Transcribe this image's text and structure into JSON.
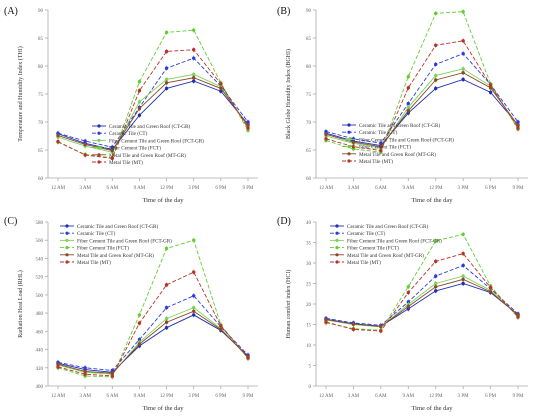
{
  "styles": {
    "series": [
      {
        "color": "#1f2fb0",
        "dash": "",
        "marker": "circle"
      },
      {
        "color": "#2b3be0",
        "dash": "4,2",
        "marker": "circle"
      },
      {
        "color": "#7dd35a",
        "dash": "",
        "marker": "circle"
      },
      {
        "color": "#66cc33",
        "dash": "4,2",
        "marker": "circle"
      },
      {
        "color": "#8b4a2b",
        "dash": "",
        "marker": "circle"
      },
      {
        "color": "#b83228",
        "dash": "4,2",
        "marker": "circle"
      }
    ],
    "axis_color": "#aaaaaa",
    "text_color": "#333333"
  },
  "chart_data": [
    {
      "type": "line",
      "panel_label": "(A)",
      "ylabel": "Temperature and Humidity Index (THI)",
      "xlabel": "Time of the day",
      "categories": [
        "12 AM",
        "3 AM",
        "6 AM",
        "9 AM",
        "12 PM",
        "3 PM",
        "6 PM",
        "9 PM"
      ],
      "ylim": [
        60,
        90
      ],
      "yticks": [
        60,
        65,
        70,
        75,
        80,
        85,
        90
      ],
      "legend_position": "bottom-left",
      "series": [
        {
          "name": "Ceramic Tile and Green Roof (CT-GR)",
          "values": [
            67.9,
            66.2,
            65.1,
            71.2,
            76.0,
            77.3,
            75.5,
            69.6
          ]
        },
        {
          "name": "Ceramic Tile (CT)",
          "values": [
            68.0,
            66.6,
            65.5,
            72.6,
            79.6,
            81.4,
            76.4,
            70.0
          ]
        },
        {
          "name": "Fiber Cement Tile and Green Roof (FCT-GR)",
          "values": [
            67.3,
            65.7,
            64.6,
            73.6,
            77.6,
            78.5,
            76.3,
            69.2
          ]
        },
        {
          "name": "Fiber Cement Tile (FCT)",
          "values": [
            66.4,
            64.2,
            63.6,
            77.2,
            86.0,
            86.4,
            77.0,
            68.5
          ]
        },
        {
          "name": "Metal Tile and Green Roof (MT-GR)",
          "values": [
            67.6,
            66.0,
            64.9,
            72.4,
            77.0,
            77.9,
            76.0,
            69.4
          ]
        },
        {
          "name": "Metal Tile (MT)",
          "values": [
            66.5,
            64.1,
            63.5,
            75.6,
            82.6,
            82.9,
            76.8,
            68.9
          ]
        }
      ]
    },
    {
      "type": "line",
      "panel_label": "(B)",
      "ylabel": "Black Globe Humidity Index (BGHI)",
      "xlabel": "Time of the day",
      "categories": [
        "12 AM",
        "3 AM",
        "6 AM",
        "9 AM",
        "12 PM",
        "3 PM",
        "6 PM",
        "9 PM"
      ],
      "ylim": [
        60,
        90
      ],
      "yticks": [
        60,
        65,
        70,
        75,
        80,
        85,
        90
      ],
      "legend_position": "bottom-left",
      "series": [
        {
          "name": "Ceramic Tile and Green Roof (CT-GR)",
          "values": [
            68.0,
            66.6,
            65.8,
            71.6,
            76.0,
            77.6,
            75.3,
            69.5
          ]
        },
        {
          "name": "Ceramic Tile (CT)",
          "values": [
            68.3,
            67.0,
            66.2,
            73.3,
            80.3,
            82.2,
            76.7,
            70.0
          ]
        },
        {
          "name": "Fiber Cement Tile and Green Roof (FCT-GR)",
          "values": [
            67.5,
            66.2,
            65.4,
            72.6,
            78.3,
            79.5,
            76.4,
            69.2
          ]
        },
        {
          "name": "Fiber Cement Tile (FCT)",
          "values": [
            66.7,
            65.2,
            64.6,
            78.1,
            89.4,
            89.7,
            76.8,
            68.7
          ]
        },
        {
          "name": "Metal Tile and Green Roof (MT-GR)",
          "values": [
            67.8,
            66.4,
            65.6,
            72.0,
            77.5,
            78.8,
            76.1,
            69.4
          ]
        },
        {
          "name": "Metal Tile (MT)",
          "values": [
            67.0,
            65.6,
            64.9,
            76.1,
            83.7,
            84.5,
            76.6,
            68.9
          ]
        }
      ]
    },
    {
      "type": "line",
      "panel_label": "(C)",
      "ylabel": "Radiation Heat Load (RHL)",
      "xlabel": "Time of the day",
      "categories": [
        "12 AM",
        "3 AM",
        "6 AM",
        "9 AM",
        "12 PM",
        "3 PM",
        "6 PM",
        "9 PM"
      ],
      "ylim": [
        400,
        580
      ],
      "yticks": [
        400,
        420,
        440,
        460,
        480,
        500,
        520,
        540,
        560,
        580
      ],
      "legend_position": "top-left",
      "series": [
        {
          "name": "Ceramic Tile and Green Roof (CT-GR)",
          "values": [
            425,
            418,
            415,
            444,
            464,
            478,
            461,
            433
          ]
        },
        {
          "name": "Ceramic Tile (CT)",
          "values": [
            426,
            420,
            417,
            451,
            486,
            499,
            465,
            434
          ]
        },
        {
          "name": "Fiber Cement Tile and Green Roof (FCT-GR)",
          "values": [
            423,
            415,
            413,
            448,
            474,
            486,
            463,
            431
          ]
        },
        {
          "name": "Fiber Cement Tile (FCT)",
          "values": [
            420,
            411,
            410,
            478,
            551,
            560,
            467,
            430
          ]
        },
        {
          "name": "Metal Tile and Green Roof (MT-GR)",
          "values": [
            424,
            416,
            414,
            446,
            470,
            482,
            462,
            432
          ]
        },
        {
          "name": "Metal Tile (MT)",
          "values": [
            421,
            413,
            411,
            469,
            511,
            525,
            466,
            431
          ]
        }
      ]
    },
    {
      "type": "line",
      "panel_label": "(D)",
      "ylabel": "Human comfort index (HCI)",
      "xlabel": "Time of the day",
      "categories": [
        "12 AM",
        "3 AM",
        "6 AM",
        "9 AM",
        "12 PM",
        "3 PM",
        "6 PM",
        "9 PM"
      ],
      "ylim": [
        0,
        40
      ],
      "yticks": [
        0,
        5,
        10,
        15,
        20,
        25,
        30,
        35,
        40
      ],
      "legend_position": "top-left",
      "series": [
        {
          "name": "Ceramic Tile and Green Roof (CT-GR)",
          "values": [
            16.3,
            15.2,
            14.6,
            18.8,
            23.2,
            25.0,
            22.8,
            17.4
          ]
        },
        {
          "name": "Ceramic Tile (CT)",
          "values": [
            16.5,
            15.4,
            14.8,
            20.5,
            26.8,
            29.4,
            23.7,
            17.6
          ]
        },
        {
          "name": "Fiber Cement Tile and Green Roof (FCT-GR)",
          "values": [
            16.1,
            15.0,
            14.4,
            19.9,
            25.0,
            26.8,
            23.3,
            17.1
          ]
        },
        {
          "name": "Fiber Cement Tile (FCT)",
          "values": [
            15.4,
            14.0,
            13.6,
            24.2,
            35.4,
            37.0,
            24.4,
            16.7
          ]
        },
        {
          "name": "Metal Tile and Green Roof (MT-GR)",
          "values": [
            16.2,
            15.1,
            14.5,
            19.4,
            24.2,
            26.0,
            23.0,
            17.3
          ]
        },
        {
          "name": "Metal Tile (MT)",
          "values": [
            15.6,
            13.8,
            13.4,
            22.8,
            30.4,
            32.3,
            24.0,
            16.9
          ]
        }
      ]
    }
  ]
}
